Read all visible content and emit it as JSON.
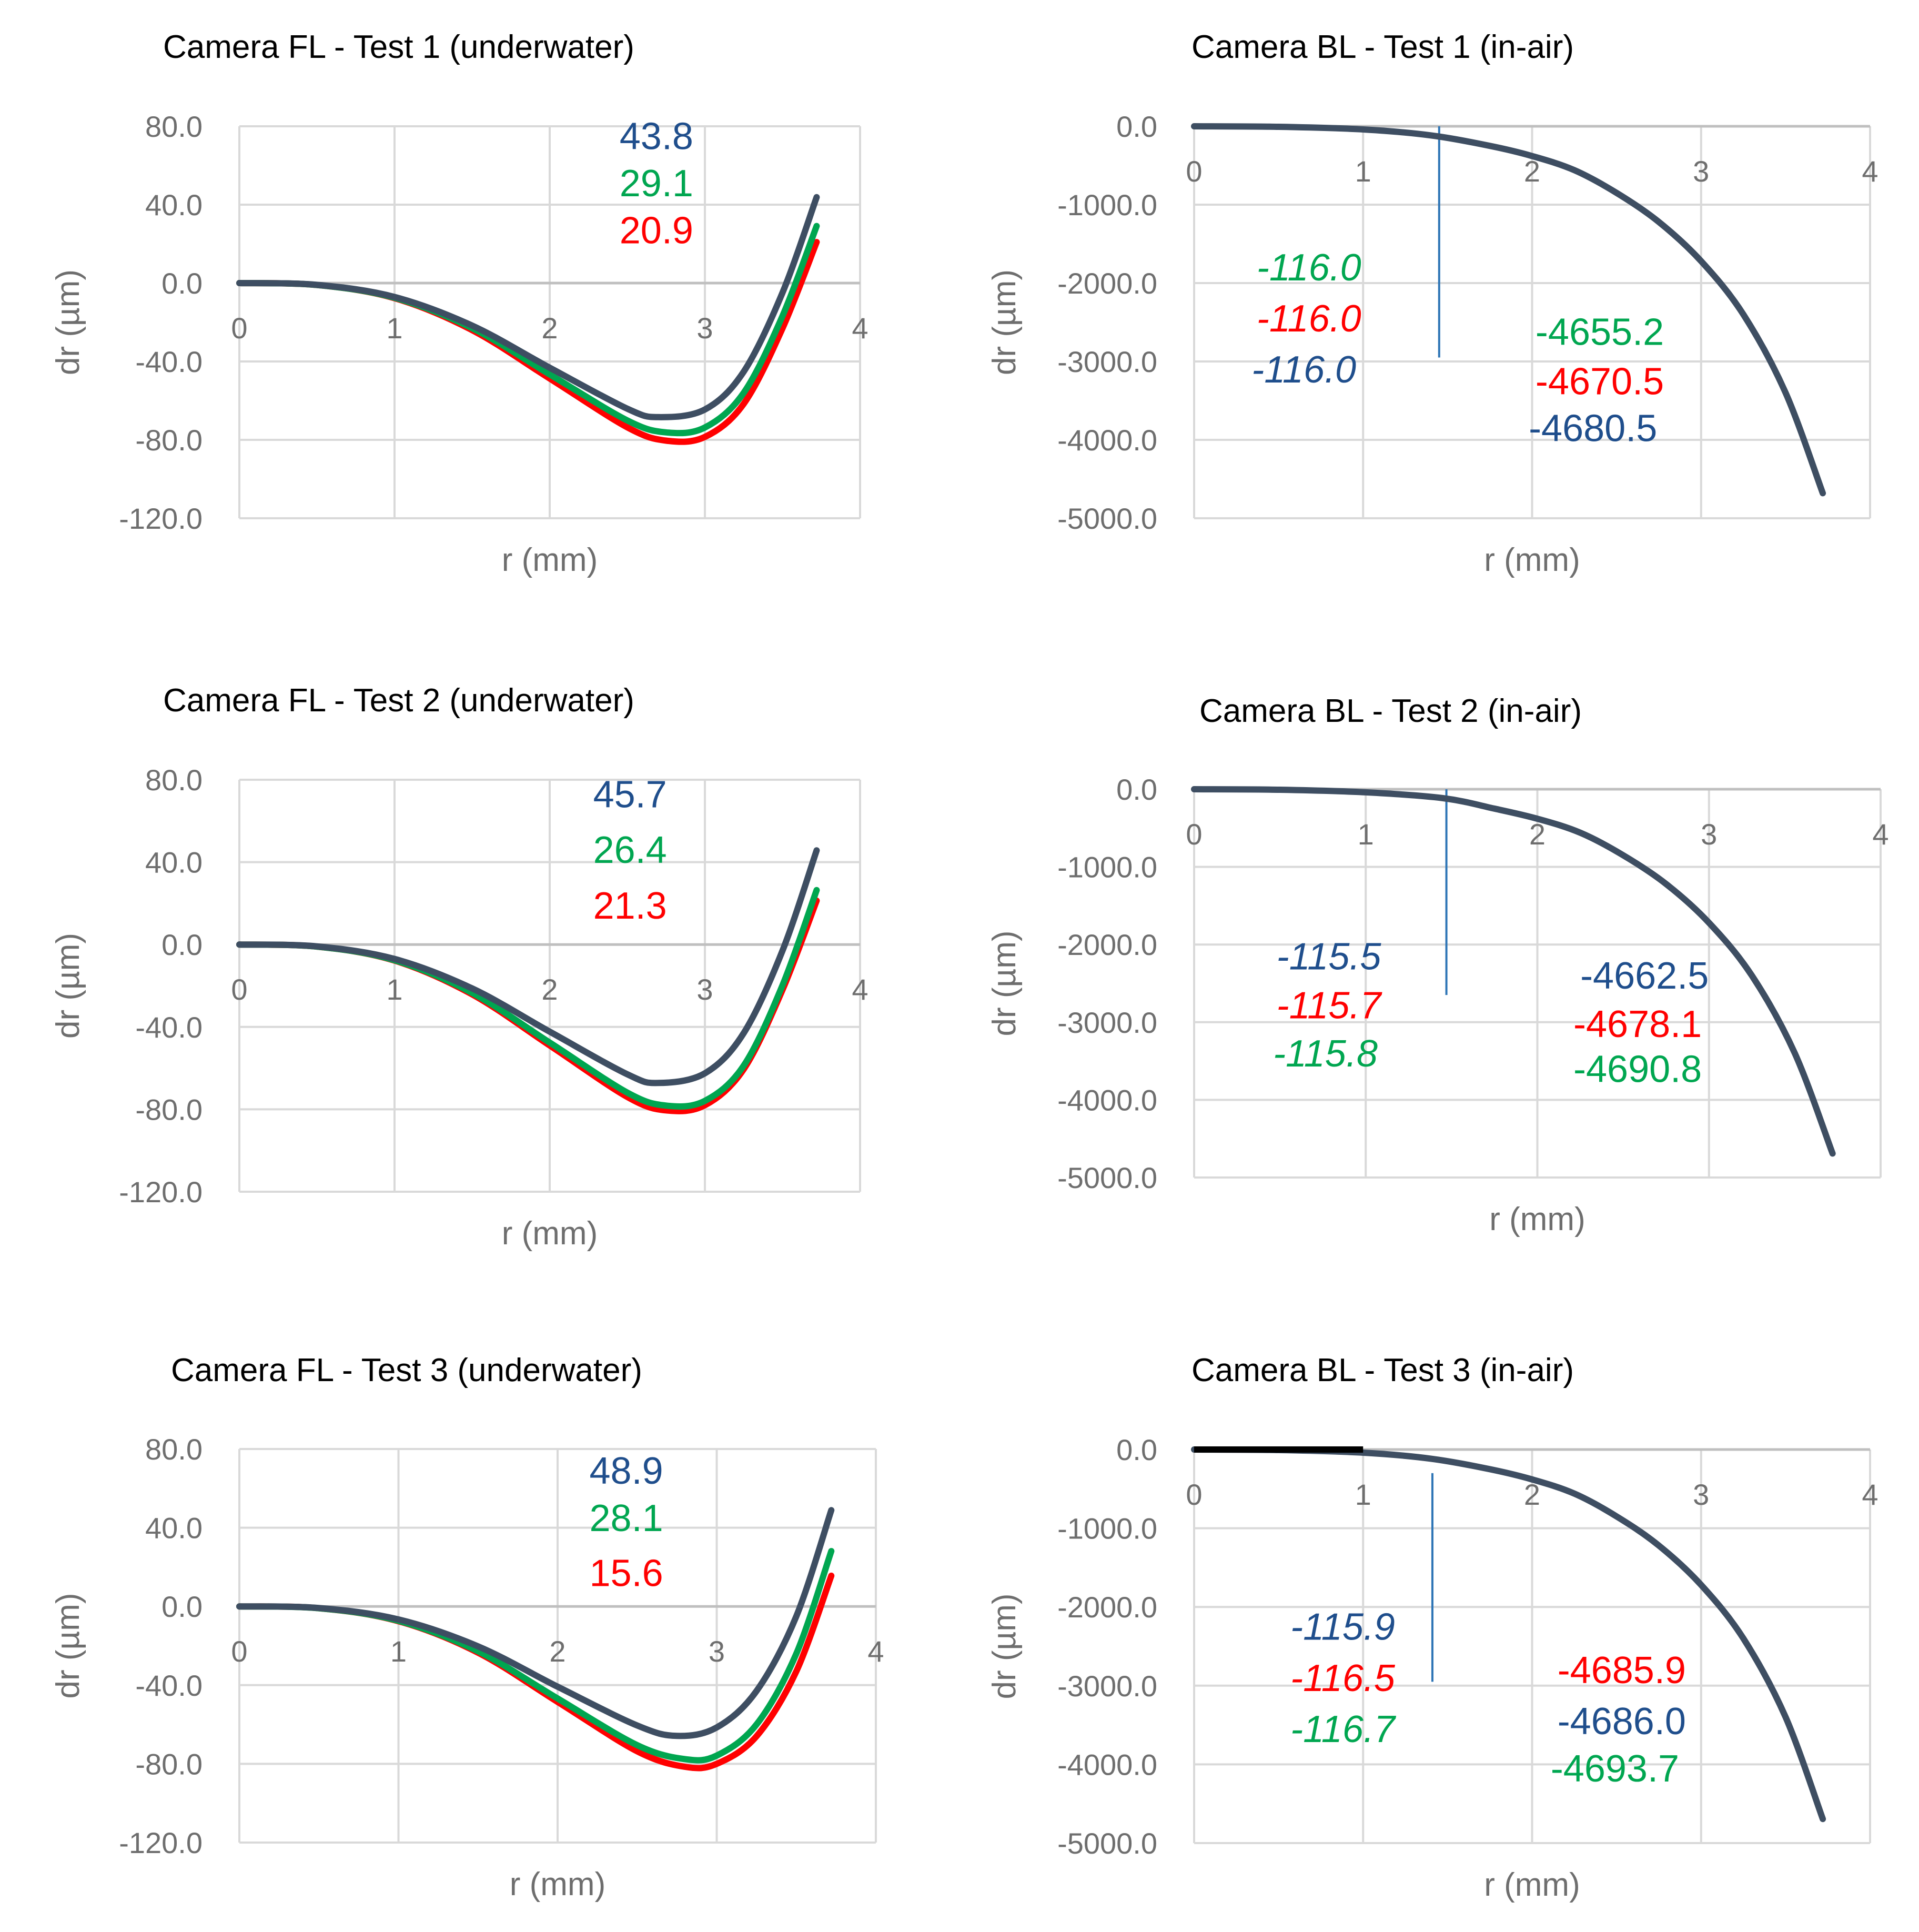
{
  "colors": {
    "blue": "#1f4e8c",
    "green": "#00a650",
    "red": "#ff0000",
    "dark": "#3e4e62"
  },
  "chart_data": [
    {
      "type": "line",
      "title": "Camera FL - Test 1 (underwater)",
      "xlabel": "r (mm)",
      "ylabel": "dr (µm)",
      "xlim": [
        0,
        4
      ],
      "ylim": [
        -120,
        80
      ],
      "xticks": [
        "0",
        "1",
        "2",
        "3",
        "4"
      ],
      "yticks": [
        "80.0",
        "40.0",
        "0.0",
        "-40.0",
        "-80.0",
        "-120.0"
      ],
      "grid": true,
      "series": [
        {
          "color": "red",
          "values": [
            [
              0,
              0
            ],
            [
              0.5,
              -1
            ],
            [
              1,
              -7.7
            ],
            [
              1.5,
              -24
            ],
            [
              2,
              -48.7
            ],
            [
              2.5,
              -73.6
            ],
            [
              2.75,
              -80.4
            ],
            [
              3,
              -78.5
            ],
            [
              3.25,
              -61.6
            ],
            [
              3.5,
              -23.1
            ],
            [
              3.72,
              20.9
            ]
          ]
        },
        {
          "color": "green",
          "values": [
            [
              0,
              0
            ],
            [
              0.5,
              -1
            ],
            [
              1,
              -7.5
            ],
            [
              1.5,
              -23
            ],
            [
              2,
              -46.6
            ],
            [
              2.5,
              -70.1
            ],
            [
              2.75,
              -76.2
            ],
            [
              3,
              -73.7
            ],
            [
              3.25,
              -56
            ],
            [
              3.5,
              -16.8
            ],
            [
              3.72,
              29.1
            ]
          ]
        },
        {
          "color": "dark",
          "values": [
            [
              0,
              0
            ],
            [
              0.5,
              -0.9
            ],
            [
              1,
              -7.1
            ],
            [
              1.5,
              -21.7
            ],
            [
              2,
              -43.2
            ],
            [
              2.5,
              -64.1
            ],
            [
              2.7,
              -68.4
            ],
            [
              3,
              -64.5
            ],
            [
              3.25,
              -45.2
            ],
            [
              3.5,
              -4.9
            ],
            [
              3.72,
              43.8
            ]
          ]
        }
      ],
      "annotations": [
        {
          "text": "43.8",
          "color": "blue",
          "italic": false,
          "x": 2.45,
          "y": 75
        },
        {
          "text": "29.1",
          "color": "green",
          "italic": false,
          "x": 2.45,
          "y": 51
        },
        {
          "text": "20.9",
          "color": "red",
          "italic": false,
          "x": 2.45,
          "y": 27
        }
      ]
    },
    {
      "type": "line",
      "title": "Camera BL - Test 1 (in-air)",
      "xlabel": "r (mm)",
      "ylabel": "dr (µm)",
      "xlim": [
        0,
        4
      ],
      "ylim": [
        -5000,
        0
      ],
      "xticks": [
        "0",
        "1",
        "2",
        "3",
        "4"
      ],
      "yticks": [
        "0.0",
        "-1000.0",
        "-2000.0",
        "-3000.0",
        "-4000.0",
        "-5000.0"
      ],
      "grid": true,
      "series": [
        {
          "color": "dark",
          "values": [
            [
              0,
              0
            ],
            [
              0.5,
              -7
            ],
            [
              1,
              -40
            ],
            [
              1.4,
              -116
            ],
            [
              1.75,
              -250
            ],
            [
              2,
              -380
            ],
            [
              2.25,
              -560
            ],
            [
              2.5,
              -850
            ],
            [
              2.75,
              -1220
            ],
            [
              3,
              -1720
            ],
            [
              3.25,
              -2400
            ],
            [
              3.5,
              -3400
            ],
            [
              3.72,
              -4680.5
            ]
          ]
        }
      ],
      "marker_line": {
        "x": 1.45,
        "y_from": 0,
        "y_to": -2950
      },
      "annotations": [
        {
          "text": "-116.0",
          "color": "green",
          "italic": true,
          "x": 0.37,
          "y": -1800
        },
        {
          "text": "-116.0",
          "color": "red",
          "italic": true,
          "x": 0.37,
          "y": -2450
        },
        {
          "text": "-116.0",
          "color": "blue",
          "italic": true,
          "x": 0.34,
          "y": -3100
        },
        {
          "text": "-4655.2",
          "color": "green",
          "italic": false,
          "x": 2.02,
          "y": -2620
        },
        {
          "text": "-4670.5",
          "color": "red",
          "italic": false,
          "x": 2.02,
          "y": -3250
        },
        {
          "text": "-4680.5",
          "color": "blue",
          "italic": false,
          "x": 1.98,
          "y": -3850
        }
      ]
    },
    {
      "type": "line",
      "title": "Camera FL - Test 2 (underwater)",
      "xlabel": "r (mm)",
      "ylabel": "dr (µm)",
      "xlim": [
        0,
        4
      ],
      "ylim": [
        -120,
        80
      ],
      "xticks": [
        "0",
        "1",
        "2",
        "3",
        "4"
      ],
      "yticks": [
        "80.0",
        "40.0",
        "0.0",
        "-40.0",
        "-80.0",
        "-120.0"
      ],
      "grid": true,
      "series": [
        {
          "color": "red",
          "values": [
            [
              0,
              0
            ],
            [
              0.5,
              -1
            ],
            [
              1,
              -7.8
            ],
            [
              1.5,
              -24.2
            ],
            [
              2,
              -49
            ],
            [
              2.5,
              -74
            ],
            [
              2.75,
              -80.5
            ],
            [
              3,
              -78
            ],
            [
              3.25,
              -60.5
            ],
            [
              3.5,
              -22
            ],
            [
              3.72,
              21.3
            ]
          ]
        },
        {
          "color": "green",
          "values": [
            [
              0,
              0
            ],
            [
              0.5,
              -1
            ],
            [
              1,
              -7.6
            ],
            [
              1.5,
              -23.5
            ],
            [
              2,
              -47.6
            ],
            [
              2.5,
              -71.9
            ],
            [
              2.75,
              -78.2
            ],
            [
              3,
              -75.9
            ],
            [
              3.25,
              -58.8
            ],
            [
              3.5,
              -19.8
            ],
            [
              3.72,
              26.4
            ]
          ]
        },
        {
          "color": "dark",
          "values": [
            [
              0,
              0
            ],
            [
              0.5,
              -0.9
            ],
            [
              1,
              -7
            ],
            [
              1.5,
              -21.3
            ],
            [
              2,
              -42.3
            ],
            [
              2.5,
              -63
            ],
            [
              2.7,
              -67.2
            ],
            [
              3,
              -62.5
            ],
            [
              3.25,
              -43
            ],
            [
              3.5,
              -3
            ],
            [
              3.72,
              45.7
            ]
          ]
        }
      ],
      "annotations": [
        {
          "text": "45.7",
          "color": "blue",
          "italic": false,
          "x": 2.28,
          "y": 73
        },
        {
          "text": "26.4",
          "color": "green",
          "italic": false,
          "x": 2.28,
          "y": 46
        },
        {
          "text": "21.3",
          "color": "red",
          "italic": false,
          "x": 2.28,
          "y": 19
        }
      ]
    },
    {
      "type": "line",
      "title": "Camera BL - Test 2 (in-air)",
      "xlabel": "r (mm)",
      "ylabel": "dr (µm)",
      "xlim": [
        0,
        4
      ],
      "ylim": [
        -5000,
        0
      ],
      "xticks": [
        "0",
        "1",
        "2",
        "3",
        "4"
      ],
      "yticks": [
        "0.0",
        "-1000.0",
        "-2000.0",
        "-3000.0",
        "-4000.0",
        "-5000.0"
      ],
      "grid": true,
      "series": [
        {
          "color": "dark",
          "values": [
            [
              0,
              0
            ],
            [
              0.5,
              -7
            ],
            [
              1,
              -40
            ],
            [
              1.45,
              -115.5
            ],
            [
              1.75,
              -250
            ],
            [
              2,
              -380
            ],
            [
              2.25,
              -560
            ],
            [
              2.5,
              -850
            ],
            [
              2.75,
              -1220
            ],
            [
              3,
              -1720
            ],
            [
              3.25,
              -2400
            ],
            [
              3.5,
              -3400
            ],
            [
              3.72,
              -4690.8
            ]
          ]
        }
      ],
      "marker_line": {
        "x": 1.47,
        "y_from": 0,
        "y_to": -2650
      },
      "annotations": [
        {
          "text": "-115.5",
          "color": "blue",
          "italic": true,
          "x": 0.48,
          "y": -2150
        },
        {
          "text": "-115.7",
          "color": "red",
          "italic": true,
          "x": 0.48,
          "y": -2780
        },
        {
          "text": "-115.8",
          "color": "green",
          "italic": true,
          "x": 0.46,
          "y": -3400
        },
        {
          "text": "-4662.5",
          "color": "blue",
          "italic": false,
          "x": 2.25,
          "y": -2400
        },
        {
          "text": "-4678.1",
          "color": "red",
          "italic": false,
          "x": 2.21,
          "y": -3020
        },
        {
          "text": "-4690.8",
          "color": "green",
          "italic": false,
          "x": 2.21,
          "y": -3600
        }
      ]
    },
    {
      "type": "line",
      "title": "Camera FL - Test 3 (underwater)",
      "xlabel": "r (mm)",
      "ylabel": "dr (µm)",
      "xlim": [
        0,
        4
      ],
      "ylim": [
        -120,
        80
      ],
      "xticks": [
        "0",
        "1",
        "2",
        "3",
        "4"
      ],
      "yticks": [
        "80.0",
        "40.0",
        "0.0",
        "-40.0",
        "-80.0",
        "-120.0"
      ],
      "grid": true,
      "series": [
        {
          "color": "red",
          "values": [
            [
              0,
              0
            ],
            [
              0.5,
              -0.9
            ],
            [
              1,
              -7.5
            ],
            [
              1.5,
              -23.5
            ],
            [
              2,
              -48.5
            ],
            [
              2.5,
              -73.6
            ],
            [
              2.8,
              -81.5
            ],
            [
              3,
              -80
            ],
            [
              3.25,
              -66
            ],
            [
              3.5,
              -33
            ],
            [
              3.72,
              15.6
            ]
          ]
        },
        {
          "color": "green",
          "values": [
            [
              0,
              0
            ],
            [
              0.5,
              -0.9
            ],
            [
              1,
              -7.3
            ],
            [
              1.5,
              -22.8
            ],
            [
              2,
              -46.8
            ],
            [
              2.5,
              -70.5
            ],
            [
              2.8,
              -77.6
            ],
            [
              3,
              -75.8
            ],
            [
              3.25,
              -60
            ],
            [
              3.5,
              -24
            ],
            [
              3.72,
              28.1
            ]
          ]
        },
        {
          "color": "dark",
          "values": [
            [
              0,
              0
            ],
            [
              0.5,
              -0.8
            ],
            [
              1,
              -6.6
            ],
            [
              1.5,
              -20.3
            ],
            [
              2,
              -40.8
            ],
            [
              2.5,
              -60.5
            ],
            [
              2.75,
              -65.8
            ],
            [
              3,
              -61.5
            ],
            [
              3.25,
              -43
            ],
            [
              3.5,
              -5
            ],
            [
              3.72,
              48.9
            ]
          ]
        }
      ],
      "annotations": [
        {
          "text": "48.9",
          "color": "blue",
          "italic": false,
          "x": 2.2,
          "y": 69
        },
        {
          "text": "28.1",
          "color": "green",
          "italic": false,
          "x": 2.2,
          "y": 45
        },
        {
          "text": "15.6",
          "color": "red",
          "italic": false,
          "x": 2.2,
          "y": 17
        }
      ]
    },
    {
      "type": "line",
      "title": "Camera BL - Test 3 (in-air)",
      "xlabel": "r (mm)",
      "ylabel": "dr (µm)",
      "xlim": [
        0,
        4
      ],
      "ylim": [
        -5000,
        0
      ],
      "xticks": [
        "0",
        "1",
        "2",
        "3",
        "4"
      ],
      "yticks": [
        "0.0",
        "-1000.0",
        "-2000.0",
        "-3000.0",
        "-4000.0",
        "-5000.0"
      ],
      "grid": true,
      "series": [
        {
          "color": "dark",
          "values": [
            [
              0,
              0
            ],
            [
              0.5,
              -7
            ],
            [
              1,
              -40
            ],
            [
              1.4,
              -116
            ],
            [
              1.75,
              -250
            ],
            [
              2,
              -380
            ],
            [
              2.25,
              -560
            ],
            [
              2.5,
              -850
            ],
            [
              2.75,
              -1220
            ],
            [
              3,
              -1720
            ],
            [
              3.25,
              -2400
            ],
            [
              3.5,
              -3400
            ],
            [
              3.72,
              -4693.7
            ]
          ]
        }
      ],
      "black_segment": {
        "x_from": 0,
        "x_to": 1,
        "y": 0
      },
      "marker_line": {
        "x": 1.41,
        "y_from": -300,
        "y_to": -2950
      },
      "annotations": [
        {
          "text": "-115.9",
          "color": "blue",
          "italic": true,
          "x": 0.57,
          "y": -2250
        },
        {
          "text": "-116.5",
          "color": "red",
          "italic": true,
          "x": 0.57,
          "y": -2900
        },
        {
          "text": "-116.7",
          "color": "green",
          "italic": true,
          "x": 0.57,
          "y": -3550
        },
        {
          "text": "-4685.9",
          "color": "red",
          "italic": false,
          "x": 2.15,
          "y": -2800
        },
        {
          "text": "-4686.0",
          "color": "blue",
          "italic": false,
          "x": 2.15,
          "y": -3450
        },
        {
          "text": "-4693.7",
          "color": "green",
          "italic": false,
          "x": 2.11,
          "y": -4050
        }
      ]
    }
  ]
}
